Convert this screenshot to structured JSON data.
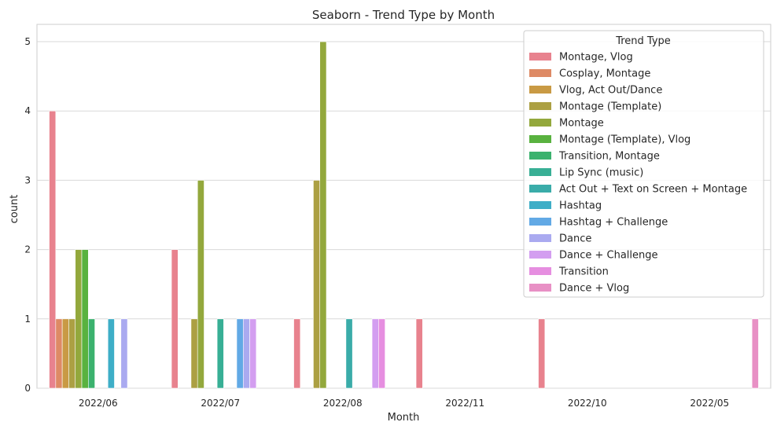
{
  "chart_data": {
    "type": "bar",
    "title": "Seaborn - Trend Type by Month",
    "xlabel": "Month",
    "ylabel": "count",
    "ylim": [
      0,
      5.25
    ],
    "yticks": [
      0,
      1,
      2,
      3,
      4,
      5
    ],
    "grid": true,
    "legend_title": "Trend Type",
    "legend_position": "top-right",
    "categories": [
      "2022/06",
      "2022/07",
      "2022/08",
      "2022/11",
      "2022/10",
      "2022/05"
    ],
    "series": [
      {
        "name": "Montage, Vlog",
        "color": "#e8828e",
        "values": [
          4,
          2,
          1,
          1,
          1,
          null
        ]
      },
      {
        "name": "Cosplay, Montage",
        "color": "#de8a65",
        "values": [
          1,
          null,
          null,
          null,
          null,
          null
        ]
      },
      {
        "name": "Vlog, Act Out/Dance",
        "color": "#c99a44",
        "values": [
          1,
          null,
          null,
          null,
          null,
          null
        ]
      },
      {
        "name": "Montage (Template)",
        "color": "#aca043",
        "values": [
          1,
          1,
          3,
          null,
          null,
          null
        ]
      },
      {
        "name": "Montage",
        "color": "#93a83c",
        "values": [
          2,
          3,
          5,
          null,
          null,
          null
        ]
      },
      {
        "name": "Montage (Template), Vlog",
        "color": "#59b23f",
        "values": [
          2,
          null,
          null,
          null,
          null,
          null
        ]
      },
      {
        "name": "Transition, Montage",
        "color": "#3bb26e",
        "values": [
          1,
          null,
          null,
          null,
          null,
          null
        ]
      },
      {
        "name": "Lip Sync (music)",
        "color": "#38af95",
        "values": [
          null,
          1,
          null,
          null,
          null,
          null
        ]
      },
      {
        "name": "Act Out + Text on Screen + Montage",
        "color": "#3aaca9",
        "values": [
          null,
          null,
          1,
          null,
          null,
          null
        ]
      },
      {
        "name": "Hashtag",
        "color": "#3eaec7",
        "values": [
          1,
          null,
          null,
          null,
          null,
          null
        ]
      },
      {
        "name": "Hashtag + Challenge",
        "color": "#62a9e5",
        "values": [
          null,
          1,
          null,
          null,
          null,
          null
        ]
      },
      {
        "name": "Dance",
        "color": "#aaaaf0",
        "values": [
          1,
          1,
          null,
          null,
          null,
          null
        ]
      },
      {
        "name": "Dance + Challenge",
        "color": "#d39ef0",
        "values": [
          null,
          1,
          1,
          null,
          null,
          null
        ]
      },
      {
        "name": "Transition",
        "color": "#e68ee0",
        "values": [
          null,
          null,
          1,
          null,
          null,
          null
        ]
      },
      {
        "name": "Dance + Vlog",
        "color": "#e890c5",
        "values": [
          null,
          null,
          null,
          null,
          null,
          1
        ]
      }
    ]
  }
}
